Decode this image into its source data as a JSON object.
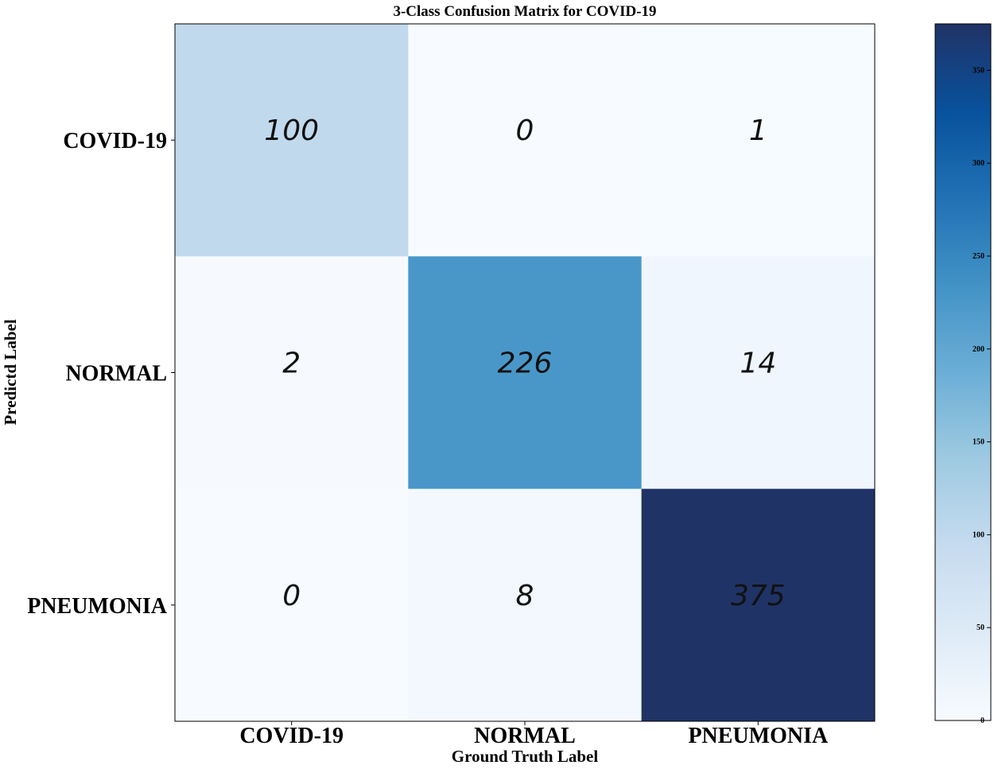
{
  "chart_data": {
    "type": "heatmap",
    "title": "3-Class Confusion Matrix for COVID-19",
    "xlabel": "Ground Truth Label",
    "ylabel": "Predictd Label",
    "row_labels": [
      "COVID-19",
      "NORMAL",
      "PNEUMONIA"
    ],
    "col_labels": [
      "COVID-19",
      "NORMAL",
      "PNEUMONIA"
    ],
    "values": [
      [
        100,
        0,
        1
      ],
      [
        2,
        226,
        14
      ],
      [
        0,
        8,
        375
      ]
    ],
    "colormap": "Blues",
    "colorbar": {
      "range": [
        0,
        375
      ],
      "ticks": [
        "0",
        "50",
        "100",
        "150",
        "200",
        "250",
        "300",
        "350"
      ]
    }
  }
}
